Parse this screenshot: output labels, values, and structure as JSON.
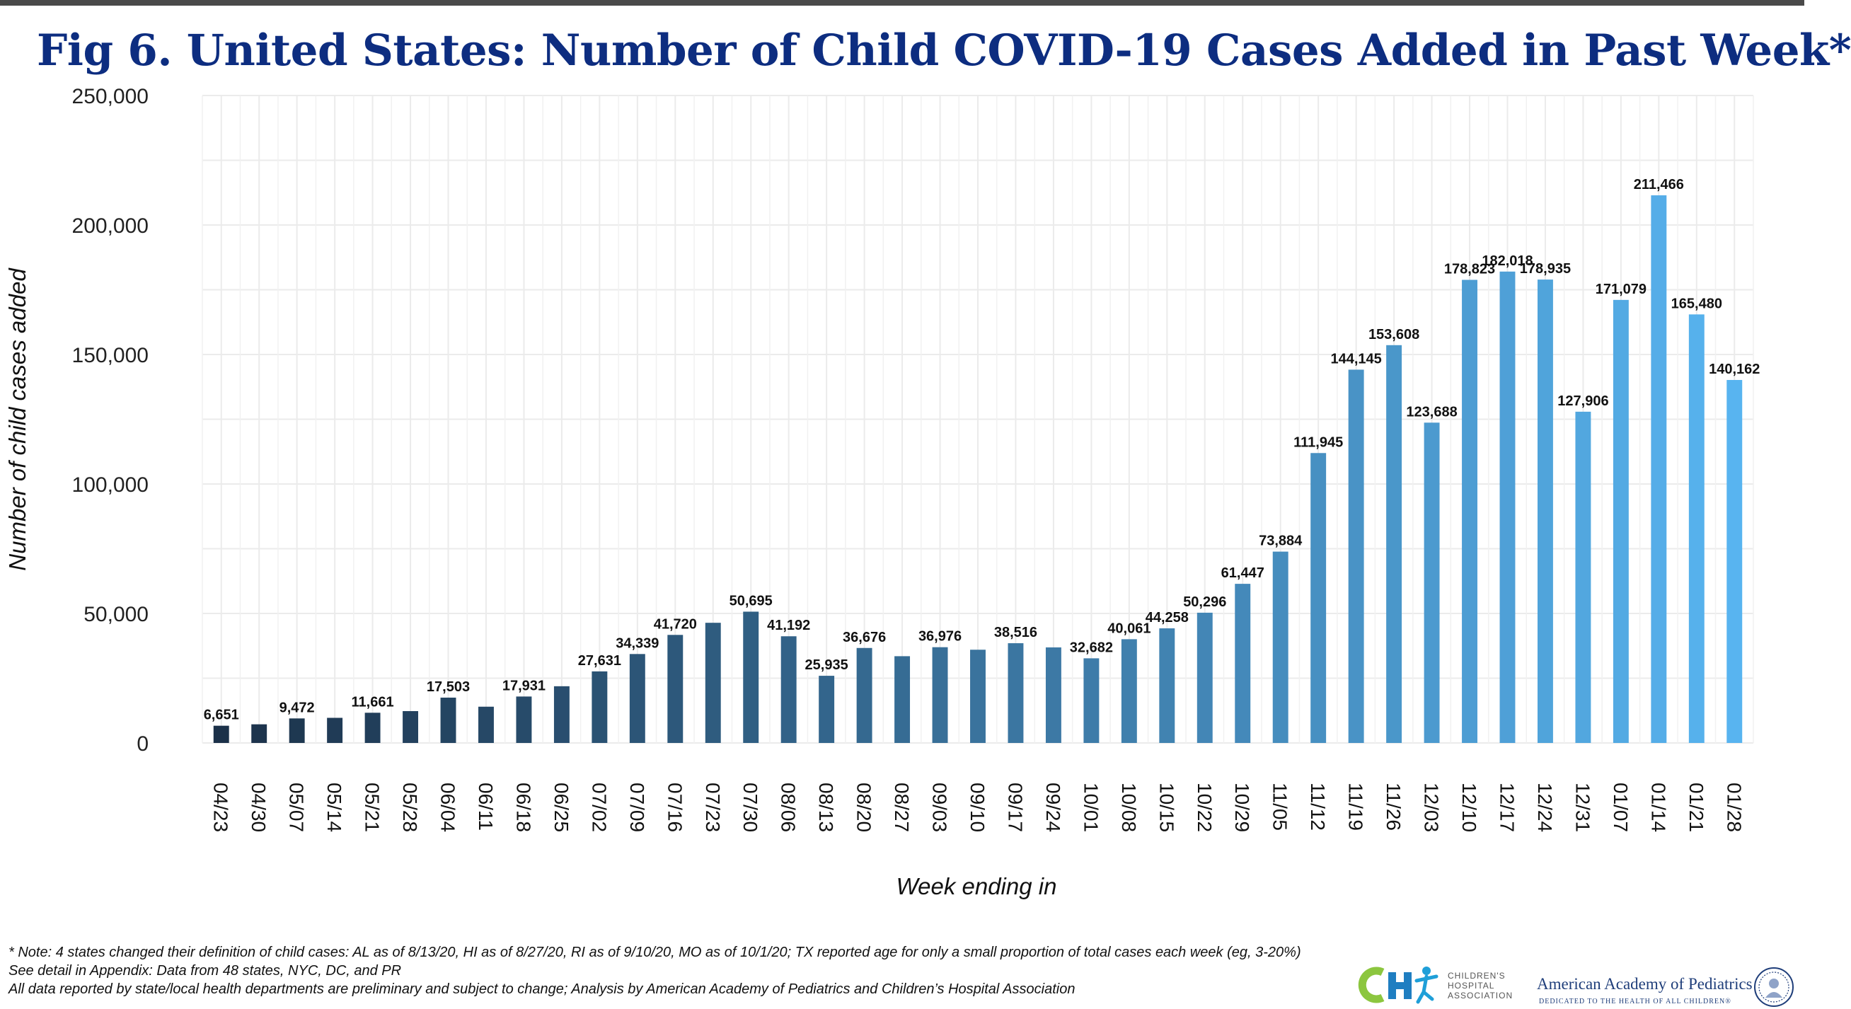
{
  "title": "Fig 6. United States: Number of Child COVID-19 Cases Added in Past Week*",
  "footnotes": [
    "* Note: 4 states changed their definition of child cases: AL as of 8/13/20, HI as of 8/27/20, RI as of 9/10/20, MO as of 10/1/20; TX reported age for only a small proportion of total cases each week (eg, 3-20%)",
    "See detail in Appendix: Data from 48 states, NYC, DC, and PR",
    "All data reported by state/local health departments are preliminary and subject to change; Analysis by American Academy of Pediatrics and Children’s Hospital Association"
  ],
  "logos": {
    "cha": {
      "lines": [
        "CHILDREN'S",
        "HOSPITAL",
        "ASSOCIATION"
      ]
    },
    "aap": {
      "name": "American Academy of Pediatrics",
      "tagline": "DEDICATED TO THE HEALTH OF ALL CHILDREN®"
    }
  },
  "chart_data": {
    "type": "bar",
    "xlabel": "Week ending in",
    "ylabel": "Number of child cases added",
    "ylim": [
      0,
      250000
    ],
    "yticks": [
      0,
      50000,
      100000,
      150000,
      200000,
      250000
    ],
    "ytick_labels": [
      "0",
      "50,000",
      "100,000",
      "150,000",
      "200,000",
      "250,000"
    ],
    "grid": true,
    "color_gradient": [
      "#1b3149",
      "#58b4f0"
    ],
    "categories": [
      "04/23",
      "04/30",
      "05/07",
      "05/14",
      "05/21",
      "05/28",
      "06/04",
      "06/11",
      "06/18",
      "06/25",
      "07/02",
      "07/09",
      "07/16",
      "07/23",
      "07/30",
      "08/06",
      "08/13",
      "08/20",
      "08/27",
      "09/03",
      "09/10",
      "09/17",
      "09/24",
      "10/01",
      "10/08",
      "10/15",
      "10/22",
      "10/29",
      "11/05",
      "11/12",
      "11/19",
      "11/26",
      "12/03",
      "12/10",
      "12/17",
      "12/24",
      "12/31",
      "01/07",
      "01/14",
      "01/21",
      "01/28"
    ],
    "values": [
      6651,
      7200,
      9472,
      9700,
      11661,
      12300,
      17503,
      14000,
      17931,
      21900,
      27631,
      34339,
      41720,
      46400,
      50695,
      41192,
      25935,
      36676,
      33500,
      36976,
      36000,
      38516,
      36900,
      32682,
      40061,
      44258,
      50296,
      61447,
      73884,
      111945,
      144145,
      153608,
      123688,
      178823,
      182018,
      178935,
      127906,
      171079,
      211466,
      165480,
      140162
    ],
    "data_labels": [
      "6,651",
      "",
      "9,472",
      "",
      "11,661",
      "",
      "17,503",
      "",
      "17,931",
      "",
      "27,631",
      "34,339",
      "41,720",
      "",
      "50,695",
      "41,192",
      "25,935",
      "36,676",
      "",
      "36,976",
      "",
      "38,516",
      "",
      "32,682",
      "40,061",
      "44,258",
      "50,296",
      "61,447",
      "73,884",
      "111,945",
      "144,145",
      "153,608",
      "123,688",
      "178,823",
      "182,018",
      "178,935",
      "127,906",
      "171,079",
      "211,466",
      "165,480",
      "140,162"
    ]
  }
}
